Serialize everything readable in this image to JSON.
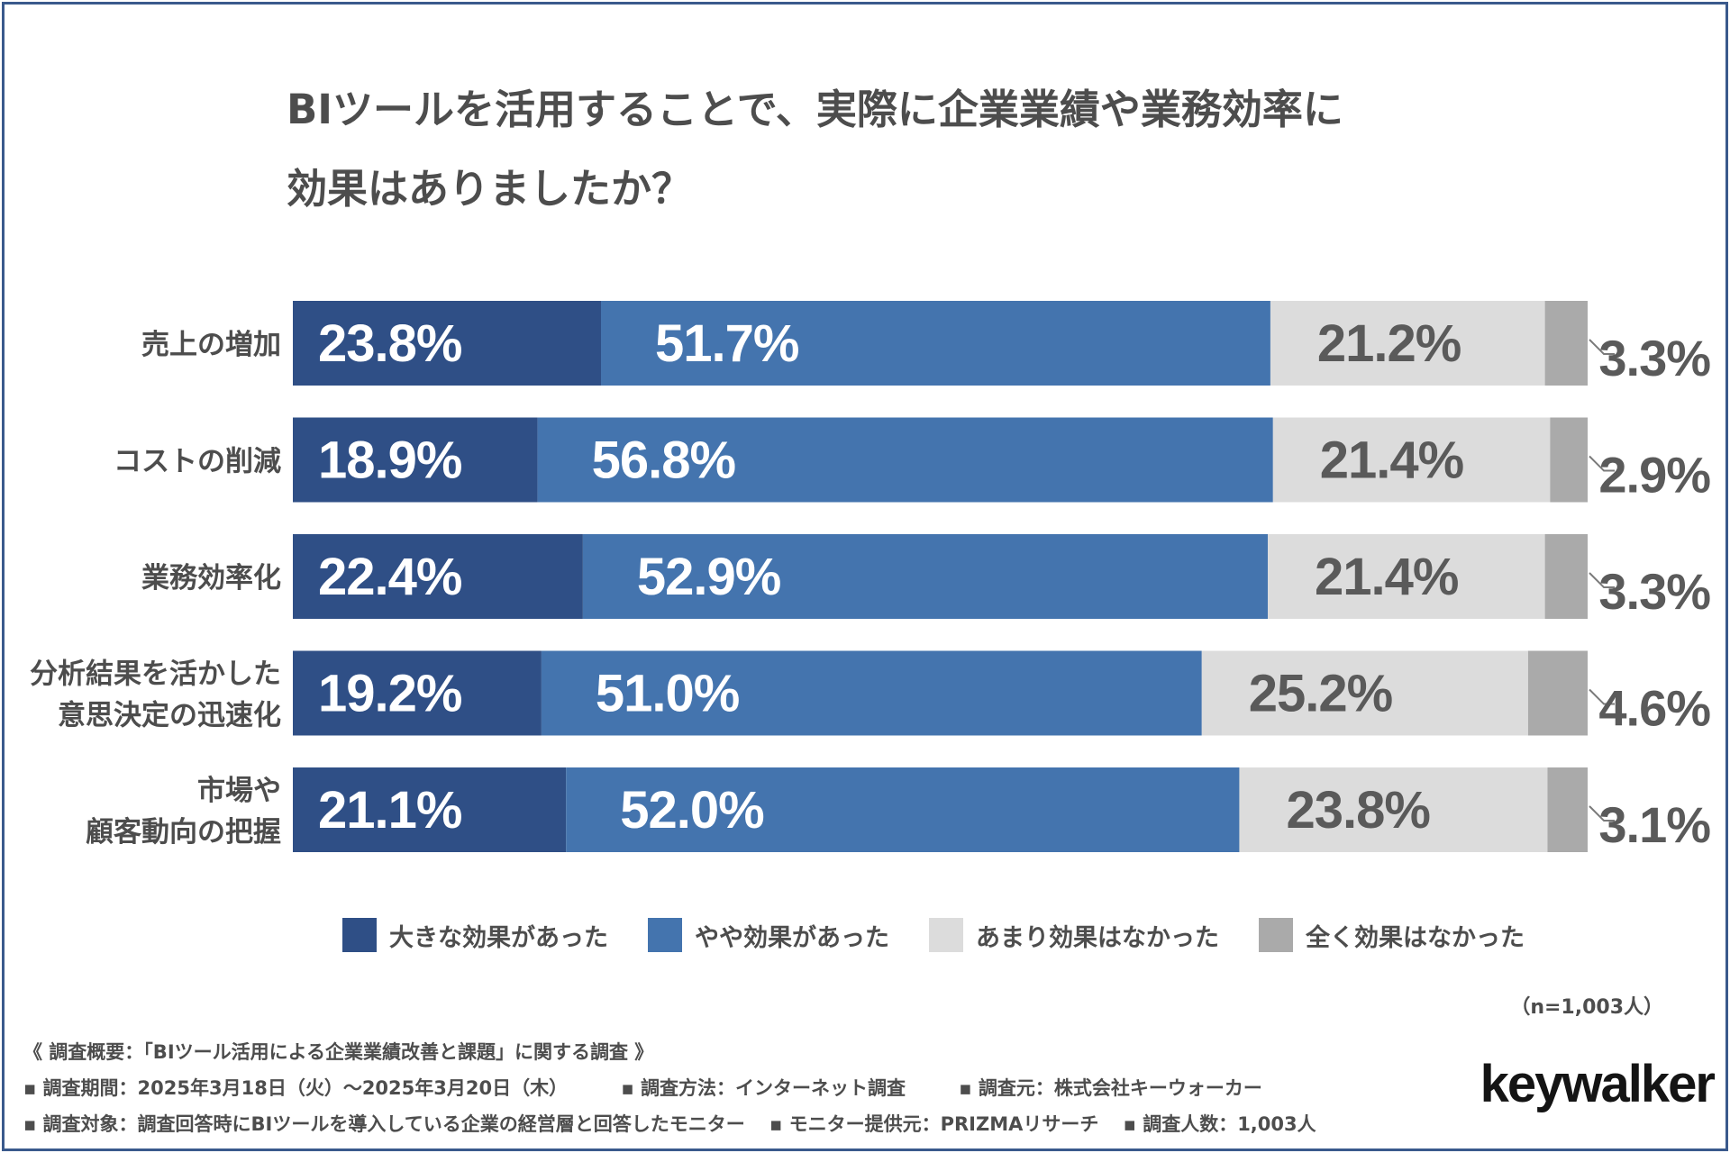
{
  "title_line1": "BIツールを活用することで、実際に企業業績や業務効率に",
  "title_line2": "効果はありましたか？",
  "chart_data": {
    "type": "bar",
    "orientation": "horizontal",
    "stacked": true,
    "unit": "%",
    "categories": [
      [
        "売上の増加"
      ],
      [
        "コストの削減"
      ],
      [
        "業務効率化"
      ],
      [
        "分析結果を活かした",
        "意思決定の迅速化"
      ],
      [
        "市場や",
        "顧客動向の把握"
      ]
    ],
    "series": [
      {
        "name": "大きな効果があった",
        "color": "#2f4f86",
        "values": [
          23.8,
          18.9,
          22.4,
          19.2,
          21.1
        ],
        "labels": [
          "23.8%",
          "18.9%",
          "22.4%",
          "19.2%",
          "21.1%"
        ]
      },
      {
        "name": "やや効果があった",
        "color": "#4474ae",
        "values": [
          51.7,
          56.8,
          52.9,
          51.0,
          52.0
        ],
        "labels": [
          "51.7%",
          "56.8%",
          "52.9%",
          "51.0%",
          "52.0%"
        ]
      },
      {
        "name": "あまり効果はなかった",
        "color": "#dcdcdc",
        "values": [
          21.2,
          21.4,
          21.4,
          25.2,
          23.8
        ],
        "labels": [
          "21.2%",
          "21.4%",
          "21.4%",
          "25.2%",
          "23.8%"
        ]
      },
      {
        "name": "全く効果はなかった",
        "color": "#aaaaaa",
        "values": [
          3.3,
          2.9,
          3.3,
          4.6,
          3.1
        ],
        "labels": [
          "3.3%",
          "2.9%",
          "3.3%",
          "4.6%",
          "3.1%"
        ]
      }
    ],
    "xlim": [
      0,
      100
    ]
  },
  "note": "（n=1,003人）",
  "survey": {
    "heading": "《 調査概要：「BIツール活用による企業業績改善と課題」に関する調査 》",
    "period": "▪ 調査期間：2025年3月18日（火）～2025年3月20日（木）",
    "method": "▪ 調査方法：インターネット調査",
    "source": "▪ 調査元：株式会社キーウォーカー",
    "target": "▪ 調査対象：調査回答時にBIツールを導入している企業の経営層と回答したモニター",
    "provider": "▪ モニター提供元：PRIZMAリサーチ",
    "count": "▪ 調査人数：1,003人"
  },
  "brand": "keywalker"
}
